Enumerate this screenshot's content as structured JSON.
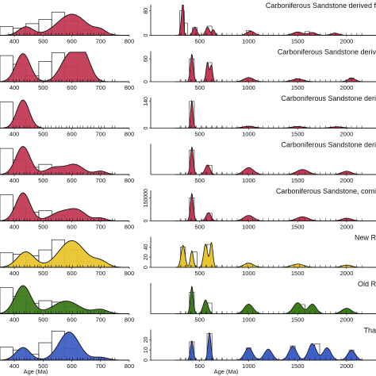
{
  "colors": {
    "carboniferous": "#c23a55",
    "new_red": "#e8c52e",
    "old_red": "#3d7a1c",
    "thames": "#3f5fc4",
    "outline": "#111111"
  },
  "rows": [
    {
      "color": "#c23a55",
      "right_title": "Carboniferous Sandstone derived f",
      "right_ticks": [
        "0",
        "80"
      ],
      "right_ymax": 100,
      "left_peaks": [
        [
          440,
          0.3,
          25
        ],
        [
          600,
          0.75,
          50
        ],
        [
          700,
          0.15,
          20
        ]
      ],
      "left_hist": [
        0.3,
        0.25,
        0.4,
        0.55,
        0.8,
        0.5,
        0.2,
        0,
        0,
        0
      ],
      "right_peaks": [
        [
          320,
          0.8,
          12
        ],
        [
          330,
          1.0,
          6
        ],
        [
          450,
          0.3,
          20
        ],
        [
          580,
          0.3,
          20
        ],
        [
          640,
          0.2,
          15
        ],
        [
          1020,
          0.15,
          40
        ],
        [
          1500,
          0.12,
          50
        ],
        [
          1650,
          0.1,
          40
        ],
        [
          1880,
          0.08,
          40
        ]
      ],
      "right_hist": [
        [
          320,
          80
        ],
        [
          350,
          40
        ],
        [
          450,
          25
        ],
        [
          600,
          30
        ],
        [
          1000,
          15
        ],
        [
          1600,
          12
        ]
      ]
    },
    {
      "color": "#c23a55",
      "right_title": "Carboniferous Sandstone deriv",
      "right_ticks": [
        "0",
        "60"
      ],
      "right_ymax": 80,
      "left_peaks": [
        [
          430,
          1.0,
          25
        ],
        [
          590,
          0.9,
          30
        ],
        [
          640,
          0.95,
          25
        ]
      ],
      "left_hist": [
        0.9,
        0.6,
        0.2,
        0.7,
        1.0,
        0.5,
        0,
        0,
        0,
        0
      ],
      "right_peaks": [
        [
          420,
          1.0,
          15
        ],
        [
          580,
          0.7,
          15
        ],
        [
          620,
          0.6,
          12
        ],
        [
          1000,
          0.15,
          50
        ],
        [
          1500,
          0.1,
          60
        ],
        [
          2050,
          0.12,
          40
        ]
      ],
      "right_hist": [
        [
          420,
          60
        ],
        [
          600,
          50
        ],
        [
          1000,
          10
        ],
        [
          1500,
          8
        ],
        [
          2050,
          10
        ]
      ]
    },
    {
      "color": "#c23a55",
      "right_title": "Carboniferous Sandstone deri",
      "right_ticks": [
        "0",
        "140"
      ],
      "right_ymax": 160,
      "left_peaks": [
        [
          430,
          1.0,
          22
        ]
      ],
      "left_hist": [
        0.9,
        0.3,
        0,
        0,
        0,
        0,
        0,
        0,
        0,
        0
      ],
      "right_peaks": [
        [
          420,
          1.0,
          12
        ],
        [
          1000,
          0.07,
          60
        ],
        [
          1500,
          0.06,
          60
        ],
        [
          1900,
          0.05,
          60
        ]
      ],
      "right_hist": [
        [
          420,
          140
        ],
        [
          1000,
          10
        ],
        [
          1500,
          8
        ]
      ]
    },
    {
      "color": "#c23a55",
      "right_title": "Carboniferous Sandstone deri",
      "right_ticks": [],
      "right_ymax": 100,
      "left_peaks": [
        [
          430,
          1.0,
          25
        ],
        [
          540,
          0.25,
          30
        ],
        [
          610,
          0.35,
          30
        ],
        [
          700,
          0.12,
          20
        ]
      ],
      "left_hist": [
        0.9,
        0.5,
        0.25,
        0.35,
        0.2,
        0.05,
        0,
        0,
        0,
        0
      ],
      "right_peaks": [
        [
          420,
          1.0,
          15
        ],
        [
          580,
          0.35,
          25
        ],
        [
          1000,
          0.25,
          50
        ],
        [
          1550,
          0.18,
          60
        ],
        [
          2000,
          0.12,
          50
        ]
      ],
      "right_hist": [
        [
          420,
          80
        ],
        [
          600,
          30
        ],
        [
          1000,
          20
        ],
        [
          1550,
          15
        ]
      ]
    },
    {
      "color": "#c23a55",
      "right_title": "Carboniferous Sandstone, comi",
      "right_ticks": [
        "0",
        "150000"
      ],
      "right_ymax": 200000,
      "left_peaks": [
        [
          430,
          1.0,
          25
        ],
        [
          560,
          0.3,
          35
        ],
        [
          620,
          0.35,
          30
        ],
        [
          700,
          0.1,
          20
        ]
      ],
      "left_hist": [
        0.9,
        0.45,
        0.3,
        0.35,
        0.2,
        0.05,
        0,
        0,
        0,
        0
      ],
      "right_peaks": [
        [
          420,
          1.0,
          15
        ],
        [
          590,
          0.3,
          25
        ],
        [
          1000,
          0.2,
          50
        ],
        [
          1550,
          0.15,
          60
        ],
        [
          2000,
          0.1,
          50
        ]
      ],
      "right_hist": [
        [
          420,
          150000
        ],
        [
          600,
          50000
        ],
        [
          1000,
          30000
        ],
        [
          1550,
          20000
        ]
      ]
    },
    {
      "color": "#e8c52e",
      "right_title": "New R",
      "right_ticks": [
        "0",
        "20",
        "40"
      ],
      "right_ymax": 60,
      "left_peaks": [
        [
          440,
          0.55,
          30
        ],
        [
          600,
          0.95,
          45
        ],
        [
          700,
          0.2,
          25
        ]
      ],
      "left_hist": [
        0.5,
        0.45,
        0.4,
        0.6,
        0.95,
        0.6,
        0.2,
        0,
        0,
        0
      ],
      "right_peaks": [
        [
          330,
          0.8,
          20
        ],
        [
          420,
          0.6,
          15
        ],
        [
          560,
          0.85,
          20
        ],
        [
          620,
          0.9,
          15
        ],
        [
          1000,
          0.15,
          50
        ],
        [
          1500,
          0.12,
          60
        ],
        [
          2000,
          0.08,
          50
        ]
      ],
      "right_hist": [
        [
          330,
          40
        ],
        [
          450,
          30
        ],
        [
          600,
          45
        ],
        [
          1000,
          8
        ]
      ]
    },
    {
      "color": "#3d7a1c",
      "right_title": "Old R",
      "right_ticks": [],
      "right_ymax": 100,
      "left_peaks": [
        [
          430,
          1.0,
          28
        ],
        [
          580,
          0.45,
          45
        ],
        [
          700,
          0.15,
          25
        ]
      ],
      "left_hist": [
        0.9,
        0.6,
        0.35,
        0.45,
        0.4,
        0.25,
        0.1,
        0,
        0,
        0
      ],
      "right_peaks": [
        [
          420,
          1.0,
          15
        ],
        [
          560,
          0.5,
          25
        ],
        [
          1000,
          0.35,
          45
        ],
        [
          1500,
          0.4,
          45
        ],
        [
          1650,
          0.35,
          40
        ],
        [
          2000,
          0.2,
          50
        ]
      ],
      "right_hist": [
        [
          420,
          70
        ],
        [
          600,
          35
        ],
        [
          1000,
          25
        ],
        [
          1550,
          30
        ],
        [
          2000,
          15
        ]
      ]
    },
    {
      "color": "#3f5fc4",
      "right_title": "Tha",
      "right_ticks": [
        "0",
        "10",
        "20"
      ],
      "right_ymax": 30,
      "left_peaks": [
        [
          430,
          0.45,
          25
        ],
        [
          590,
          1.0,
          35
        ],
        [
          700,
          0.1,
          25
        ]
      ],
      "left_hist": [
        0.45,
        0.35,
        0.2,
        0.6,
        1.0,
        0.4,
        0.05,
        0,
        0,
        0
      ],
      "right_peaks": [
        [
          420,
          0.7,
          15
        ],
        [
          600,
          1.0,
          15
        ],
        [
          1000,
          0.45,
          40
        ],
        [
          1200,
          0.4,
          40
        ],
        [
          1450,
          0.5,
          40
        ],
        [
          1650,
          0.6,
          40
        ],
        [
          1800,
          0.45,
          40
        ],
        [
          2050,
          0.35,
          40
        ]
      ],
      "right_hist": [
        [
          420,
          18
        ],
        [
          600,
          26
        ],
        [
          1000,
          12
        ],
        [
          1450,
          14
        ],
        [
          1700,
          16
        ],
        [
          2050,
          10
        ]
      ]
    }
  ],
  "left_axis": {
    "ticks": [
      "400",
      "500",
      "600",
      "700",
      "800"
    ],
    "xlabel": "Age (Ma)"
  },
  "right_axis": {
    "ticks": [
      "500",
      "1000",
      "1500",
      "2000"
    ],
    "xlabel": "Age (Ma)"
  },
  "chart_data": {
    "type": "area",
    "description_note": "",
    "left_xlim": [
      350,
      800
    ],
    "right_xlim": [
      0,
      2300
    ],
    "xlabel_left": "Age (Ma)",
    "xlabel_right": "Age (Ma)",
    "panels_right_titles": [
      "Carboniferous Sandstone derived f",
      "Carboniferous Sandstone deriv",
      "Carboniferous Sandstone deri",
      "Carboniferous Sandstone deri",
      "Carboniferous Sandstone, comi",
      "New R",
      "Old R",
      "Tha"
    ]
  }
}
